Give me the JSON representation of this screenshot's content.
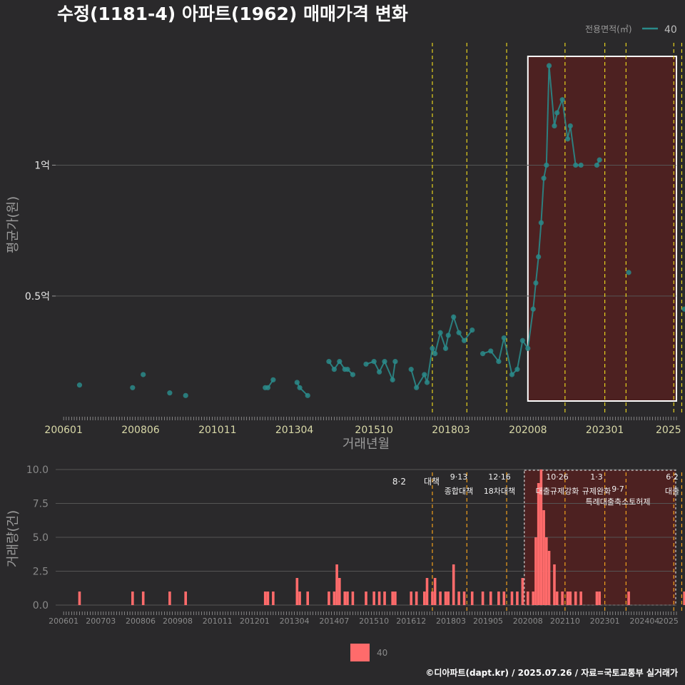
{
  "title": "수정(1181-4) 아파트(1962) 매매가격 변화",
  "caption": "©디아파트(dapt.kr) / 2025.07.26 / 자료=국토교통부 실거래가",
  "colors": {
    "line": "#2a8a8a",
    "bar": "#ff6b6b",
    "highlight": "#5a1f1f",
    "vline": "#e6d21e",
    "vline2": "#f2a11c",
    "box": "#ffffff"
  },
  "chart_data": [
    {
      "type": "line",
      "title": "수정(1181-4) 아파트(1962) 매매가격 변화",
      "xlabel": "거래년월",
      "ylabel": "평균가(원)",
      "x_ticks": [
        "200601",
        "200806",
        "201011",
        "201304",
        "201510",
        "201803",
        "202008",
        "202301",
        "2025"
      ],
      "y_ticks": [
        {
          "value": 0.5,
          "label": "0.5억"
        },
        {
          "value": 1.0,
          "label": "1억"
        }
      ],
      "ylim": [
        0.05,
        1.5
      ],
      "legend": {
        "title": "전용면적(㎡)",
        "entries": [
          "40"
        ],
        "position": "top-right"
      },
      "policy_lines": [
        "2017-08",
        "2018-09",
        "2019-12",
        "2021-10",
        "2023-01",
        "2023-09",
        "2025-03",
        "2025-06"
      ],
      "highlight_range": [
        "2020-08",
        "2025-07"
      ],
      "series": [
        {
          "name": "40",
          "points": [
            [
              "2006-07",
              0.16
            ],
            [
              "2008-03",
              0.15
            ],
            [
              "2008-07",
              0.2
            ],
            [
              "2009-05",
              0.13
            ],
            [
              "2009-11",
              0.12
            ],
            [
              "2012-05",
              0.15
            ],
            [
              "2012-06",
              0.15
            ],
            [
              "2012-08",
              0.18
            ],
            [
              "2013-05",
              0.17
            ],
            [
              "2013-06",
              0.15
            ],
            [
              "2013-09",
              0.12
            ],
            [
              "2014-05",
              0.25
            ],
            [
              "2014-07",
              0.22
            ],
            [
              "2014-09",
              0.25
            ],
            [
              "2014-11",
              0.22
            ],
            [
              "2014-12",
              0.22
            ],
            [
              "2015-02",
              0.2
            ],
            [
              "2015-07",
              0.24
            ],
            [
              "2015-10",
              0.25
            ],
            [
              "2015-12",
              0.21
            ],
            [
              "2016-02",
              0.25
            ],
            [
              "2016-05",
              0.18
            ],
            [
              "2016-06",
              0.25
            ],
            [
              "2016-12",
              0.22
            ],
            [
              "2017-02",
              0.15
            ],
            [
              "2017-05",
              0.2
            ],
            [
              "2017-06",
              0.17
            ],
            [
              "2017-08",
              0.3
            ],
            [
              "2017-09",
              0.28
            ],
            [
              "2017-11",
              0.36
            ],
            [
              "2018-01",
              0.3
            ],
            [
              "2018-02",
              0.35
            ],
            [
              "2018-04",
              0.42
            ],
            [
              "2018-06",
              0.36
            ],
            [
              "2018-08",
              0.33
            ],
            [
              "2018-11",
              0.37
            ],
            [
              "2019-03",
              0.28
            ],
            [
              "2019-06",
              0.29
            ],
            [
              "2019-09",
              0.25
            ],
            [
              "2019-11",
              0.34
            ],
            [
              "2020-02",
              0.2
            ],
            [
              "2020-04",
              0.22
            ],
            [
              "2020-06",
              0.33
            ],
            [
              "2020-08",
              0.3
            ],
            [
              "2020-10",
              0.45
            ],
            [
              "2020-11",
              0.55
            ],
            [
              "2020-12",
              0.65
            ],
            [
              "2021-01",
              0.78
            ],
            [
              "2021-02",
              0.95
            ],
            [
              "2021-03",
              1.0
            ],
            [
              "2021-04",
              1.38
            ],
            [
              "2021-06",
              1.15
            ],
            [
              "2021-07",
              1.2
            ],
            [
              "2021-09",
              1.25
            ],
            [
              "2021-11",
              1.1
            ],
            [
              "2021-12",
              1.15
            ],
            [
              "2022-02",
              1.0
            ],
            [
              "2022-04",
              1.0
            ],
            [
              "2022-10",
              1.0
            ],
            [
              "2022-11",
              1.02
            ],
            [
              "2023-10",
              0.59
            ],
            [
              "2025-07",
              0.45
            ]
          ]
        }
      ]
    },
    {
      "type": "bar",
      "xlabel": "",
      "ylabel": "거래량(건)",
      "x_ticks": [
        "200601",
        "200703",
        "200806",
        "200908",
        "201011",
        "201201",
        "201304",
        "201407",
        "201510",
        "201612",
        "201803",
        "201905",
        "202008",
        "202110",
        "202301",
        "202404",
        "2025"
      ],
      "y_ticks": [
        "0.0",
        "2.5",
        "5.0",
        "7.5",
        "10.0"
      ],
      "ylim": [
        0,
        10
      ],
      "legend": {
        "entries": [
          "40"
        ],
        "position": "bottom"
      },
      "annotations": [
        {
          "date": "8·2",
          "text": "대책"
        },
        {
          "date": "9·13",
          "text": "종합대책"
        },
        {
          "date": "12·16",
          "text": "18차대책"
        },
        {
          "date": "10·26",
          "text": "대출규제강화"
        },
        {
          "date": "1·3",
          "text": "규제완화"
        },
        {
          "date": "9·7",
          "text": "특례대출축소토허제"
        },
        {
          "date": "6·2",
          "text": "대출"
        }
      ],
      "series": [
        {
          "name": "40",
          "bars": [
            [
              "2006-07",
              1
            ],
            [
              "2008-03",
              1
            ],
            [
              "2008-07",
              1
            ],
            [
              "2009-05",
              1
            ],
            [
              "2009-11",
              1
            ],
            [
              "2012-05",
              1
            ],
            [
              "2012-06",
              1
            ],
            [
              "2012-08",
              1
            ],
            [
              "2013-05",
              2
            ],
            [
              "2013-06",
              1
            ],
            [
              "2013-09",
              1
            ],
            [
              "2014-05",
              1
            ],
            [
              "2014-07",
              1
            ],
            [
              "2014-08",
              3
            ],
            [
              "2014-09",
              2
            ],
            [
              "2014-11",
              1
            ],
            [
              "2014-12",
              1
            ],
            [
              "2015-02",
              1
            ],
            [
              "2015-07",
              1
            ],
            [
              "2015-10",
              1
            ],
            [
              "2015-12",
              1
            ],
            [
              "2016-02",
              1
            ],
            [
              "2016-05",
              1
            ],
            [
              "2016-06",
              1
            ],
            [
              "2016-12",
              1
            ],
            [
              "2017-02",
              1
            ],
            [
              "2017-05",
              1
            ],
            [
              "2017-06",
              2
            ],
            [
              "2017-08",
              1
            ],
            [
              "2017-09",
              2
            ],
            [
              "2017-11",
              1
            ],
            [
              "2018-01",
              1
            ],
            [
              "2018-02",
              1
            ],
            [
              "2018-04",
              3
            ],
            [
              "2018-06",
              1
            ],
            [
              "2018-08",
              1
            ],
            [
              "2018-11",
              1
            ],
            [
              "2019-03",
              1
            ],
            [
              "2019-06",
              1
            ],
            [
              "2019-09",
              1
            ],
            [
              "2019-11",
              1
            ],
            [
              "2020-02",
              1
            ],
            [
              "2020-04",
              1
            ],
            [
              "2020-06",
              2
            ],
            [
              "2020-08",
              1
            ],
            [
              "2020-10",
              1
            ],
            [
              "2020-11",
              5
            ],
            [
              "2020-12",
              9
            ],
            [
              "2021-01",
              10
            ],
            [
              "2021-02",
              7
            ],
            [
              "2021-03",
              5
            ],
            [
              "2021-04",
              4
            ],
            [
              "2021-06",
              3
            ],
            [
              "2021-07",
              1
            ],
            [
              "2021-09",
              1
            ],
            [
              "2021-11",
              1
            ],
            [
              "2021-12",
              1
            ],
            [
              "2022-02",
              1
            ],
            [
              "2022-04",
              1
            ],
            [
              "2022-10",
              1
            ],
            [
              "2022-11",
              1
            ],
            [
              "2023-10",
              1
            ],
            [
              "2025-07",
              1
            ]
          ]
        }
      ]
    }
  ]
}
